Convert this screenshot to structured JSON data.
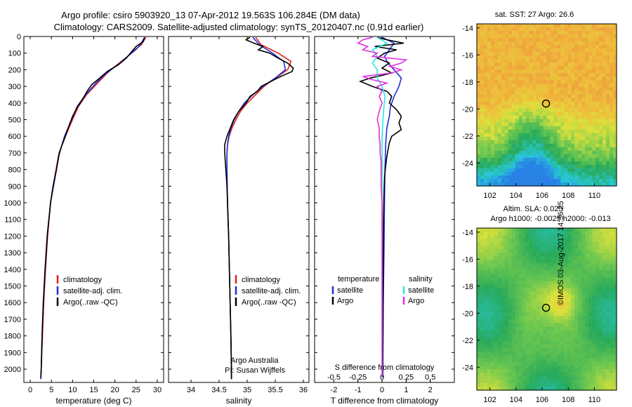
{
  "header": {
    "line1": "Argo profile: csiro 5903920_13 07-Apr-2012 19.563S 106.284E (DM data)",
    "line2": "Climatology: CARS2009. Satellite-adjusted climatology: synTS_20120407.nc (0.91d earlier)"
  },
  "credit": "©IMOS 03-Aug-2017 14:36:25",
  "depth_ticks": [
    0,
    100,
    200,
    300,
    400,
    500,
    600,
    700,
    800,
    900,
    1000,
    1100,
    1200,
    1300,
    1400,
    1500,
    1600,
    1700,
    1800,
    1900,
    2000
  ],
  "colors": {
    "clim": "#e0201c",
    "sat": "#1f2fd6",
    "argo": "#000000",
    "sal_sat": "#2ee6e6",
    "sal_argo": "#e030e0"
  },
  "chart_data": [
    {
      "type": "line",
      "title": "temperature",
      "xlabel": "temperature (deg C)",
      "xlim": [
        -1.5,
        31.5
      ],
      "xticks": [
        0,
        5,
        10,
        15,
        20,
        25,
        30
      ],
      "ylim": [
        0,
        2080
      ],
      "legend": [
        "climatology",
        "satellite-adj. clim.",
        "Argo(..raw -QC)"
      ],
      "series": [
        {
          "name": "climatology",
          "depth": [
            5,
            50,
            80,
            120,
            170,
            220,
            280,
            350,
            420,
            500,
            600,
            700,
            800,
            900,
            1000,
            1200,
            1400,
            1600,
            1800,
            2000,
            2060
          ],
          "values": [
            27.3,
            26.2,
            24.7,
            23.0,
            20.5,
            18.2,
            15.9,
            13.3,
            11.4,
            10.0,
            8.3,
            6.8,
            6.1,
            5.4,
            4.8,
            4.1,
            3.6,
            3.2,
            2.9,
            2.6,
            2.5
          ]
        },
        {
          "name": "satellite-adj. clim.",
          "depth": [
            5,
            50,
            80,
            120,
            170,
            220,
            280,
            350,
            420,
            500,
            600,
            700,
            800,
            900,
            1000,
            1200,
            1400,
            1600,
            1800,
            2000,
            2060
          ],
          "values": [
            27.0,
            26.0,
            24.9,
            23.0,
            20.7,
            18.0,
            15.5,
            13.1,
            11.1,
            9.8,
            8.1,
            6.9,
            6.2,
            5.5,
            4.8,
            4.0,
            3.5,
            3.1,
            2.8,
            2.6,
            2.5
          ]
        },
        {
          "name": "Argo(..raw -QC)",
          "depth": [
            5,
            30,
            60,
            90,
            130,
            170,
            210,
            250,
            290,
            330,
            380,
            430,
            480,
            540,
            600,
            660,
            720,
            800,
            900,
            1000,
            1200,
            1400,
            1600,
            1800,
            2000,
            2050
          ],
          "values": [
            27.0,
            26.7,
            25.0,
            24.0,
            22.7,
            20.8,
            18.2,
            16.4,
            14.5,
            13.4,
            12.3,
            11.0,
            10.0,
            9.1,
            8.3,
            7.4,
            6.7,
            6.2,
            5.4,
            4.8,
            4.0,
            3.5,
            3.1,
            2.8,
            2.6,
            2.5
          ]
        }
      ]
    },
    {
      "type": "line",
      "title": "salinity",
      "xlabel": "salinity",
      "xlim": [
        33.6,
        36.1
      ],
      "xticks": [
        34,
        34.5,
        35,
        35.5,
        36
      ],
      "ylim": [
        0,
        2080
      ],
      "legend": [
        "climatology",
        "satellite-adj. clim.",
        "Argo(..raw -QC)"
      ],
      "annotation": [
        "Argo Australia",
        "PI: Susan Wijffels"
      ],
      "series": [
        {
          "name": "climatology",
          "depth": [
            5,
            50,
            100,
            150,
            200,
            250,
            300,
            350,
            400,
            450,
            500,
            550,
            600,
            650,
            700,
            800,
            1000,
            1200,
            1500,
            1800,
            2000,
            2060
          ],
          "values": [
            35.15,
            35.25,
            35.55,
            35.78,
            35.72,
            35.5,
            35.3,
            35.15,
            35.0,
            34.88,
            34.8,
            34.73,
            34.68,
            34.65,
            34.64,
            34.64,
            34.65,
            34.67,
            34.69,
            34.71,
            34.72,
            34.72
          ]
        },
        {
          "name": "satellite-adj. clim.",
          "depth": [
            5,
            50,
            100,
            150,
            200,
            250,
            300,
            350,
            400,
            450,
            500,
            550,
            600,
            650,
            700,
            800,
            1000,
            1200,
            1500,
            1800,
            2000,
            2060
          ],
          "values": [
            35.1,
            35.22,
            35.45,
            35.65,
            35.68,
            35.5,
            35.28,
            35.1,
            34.95,
            34.85,
            34.77,
            34.71,
            34.67,
            34.65,
            34.64,
            34.64,
            34.65,
            34.67,
            34.69,
            34.71,
            34.72,
            34.72
          ]
        },
        {
          "name": "Argo(..raw -QC)",
          "depth": [
            5,
            20,
            40,
            60,
            80,
            100,
            130,
            160,
            190,
            210,
            240,
            270,
            300,
            330,
            360,
            400,
            450,
            500,
            550,
            600,
            650,
            700,
            750,
            800,
            900,
            1000,
            1200,
            1500,
            1800,
            2000,
            2060
          ],
          "values": [
            35.05,
            34.98,
            35.12,
            35.28,
            35.2,
            35.4,
            35.55,
            35.72,
            35.82,
            35.8,
            35.6,
            35.42,
            35.25,
            35.18,
            35.05,
            34.98,
            34.85,
            34.76,
            34.7,
            34.64,
            34.6,
            34.6,
            34.61,
            34.62,
            34.64,
            34.65,
            34.67,
            34.69,
            34.71,
            34.72,
            34.72
          ]
        }
      ]
    },
    {
      "type": "line",
      "title": "difference from climatology",
      "xlabel": "T difference from climatology",
      "x2label": "S difference from climatology",
      "xlim": [
        -2.8,
        3.0
      ],
      "xticks": [
        -2,
        -1,
        0,
        1,
        2
      ],
      "x2ticks": [
        -0.5,
        -0.25,
        0,
        0.25,
        0.5
      ],
      "x2tick_labels": [
        "-0.5",
        "-0.25",
        "0",
        "0.25",
        "0.5"
      ],
      "ylim": [
        0,
        2080
      ],
      "legend_headers": [
        "temperature",
        "salinity"
      ],
      "legend": [
        "satellite",
        "Argo",
        "satellite",
        "Argo"
      ],
      "series": [
        {
          "name": "temperature satellite",
          "depth": [
            5,
            40,
            80,
            120,
            160,
            200,
            250,
            300,
            360,
            420,
            480,
            550,
            650,
            800,
            1000,
            1300,
            1600,
            2000,
            2050
          ],
          "values": [
            0.0,
            0.5,
            0.3,
            0.1,
            0.25,
            0.5,
            0.8,
            0.7,
            0.5,
            0.35,
            0.3,
            0.2,
            0.15,
            0.12,
            0.1,
            0.08,
            0.05,
            0.03,
            0.02
          ]
        },
        {
          "name": "temperature Argo",
          "depth": [
            5,
            20,
            40,
            60,
            80,
            100,
            130,
            160,
            190,
            220,
            250,
            270,
            300,
            330,
            360,
            400,
            440,
            480,
            520,
            560,
            600,
            640,
            680,
            720,
            780,
            850,
            950,
            1100,
            1300,
            1600,
            1900,
            2050
          ],
          "values": [
            -0.2,
            0.2,
            0.9,
            -0.3,
            0.6,
            0.1,
            -0.2,
            0.3,
            0.0,
            0.4,
            -0.5,
            -0.9,
            -0.4,
            0.2,
            0.4,
            0.3,
            0.6,
            0.8,
            0.7,
            0.8,
            0.4,
            0.3,
            0.25,
            0.2,
            0.15,
            0.1,
            0.08,
            0.06,
            0.05,
            0.04,
            0.03,
            0.02
          ]
        },
        {
          "name": "salinity satellite",
          "depth": [
            5,
            40,
            80,
            120,
            160,
            200,
            250,
            300,
            360,
            420,
            500,
            600,
            800,
            1100,
            1500,
            2000,
            2050
          ],
          "values": [
            -0.05,
            0.05,
            -0.1,
            -0.05,
            -0.1,
            -0.05,
            -0.05,
            0.0,
            0.03,
            0.02,
            0.01,
            0.0,
            0.0,
            0.0,
            0.0,
            0.0,
            0.0
          ]
        },
        {
          "name": "salinity Argo",
          "depth": [
            5,
            20,
            40,
            60,
            80,
            100,
            120,
            140,
            160,
            180,
            200,
            220,
            240,
            260,
            280,
            300,
            330,
            360,
            400,
            450,
            500,
            550,
            600,
            650,
            700,
            750,
            800,
            900,
            1000,
            1200,
            1500,
            1800,
            2050
          ],
          "values": [
            -0.1,
            -0.2,
            -0.25,
            -0.15,
            -0.2,
            -0.05,
            -0.1,
            0.25,
            0.2,
            0.08,
            0.2,
            0.1,
            -0.2,
            -0.1,
            0.05,
            -0.05,
            0.0,
            -0.03,
            0.0,
            -0.03,
            -0.05,
            -0.03,
            -0.03,
            -0.02,
            -0.02,
            -0.01,
            -0.01,
            -0.01,
            0.0,
            0.0,
            0.0,
            0.0,
            0.0
          ]
        }
      ]
    },
    {
      "type": "heatmap",
      "title": "sat. SST: 27 Argo: 26.6",
      "xlim": [
        101,
        111.7
      ],
      "ylim": [
        -25.7,
        -13.7
      ],
      "xticks": [
        102,
        104,
        106,
        108,
        110
      ],
      "yticks": [
        -14,
        -16,
        -18,
        -20,
        -22,
        -24
      ],
      "marker": {
        "lon": 106.3,
        "lat": -19.6
      },
      "value_range": [
        23.5,
        28.5
      ]
    },
    {
      "type": "heatmap",
      "title": "Altim. SLA: 0.025",
      "subtitle": "Argo h1000: -0.0025 h2000: -0.013",
      "xlim": [
        101,
        111.7
      ],
      "ylim": [
        -25.7,
        -13.7
      ],
      "xticks": [
        102,
        104,
        106,
        108,
        110
      ],
      "yticks": [
        -14,
        -16,
        -18,
        -20,
        -22,
        -24
      ],
      "marker": {
        "lon": 106.3,
        "lat": -19.6
      },
      "value_range": [
        -0.1,
        0.1
      ]
    }
  ]
}
